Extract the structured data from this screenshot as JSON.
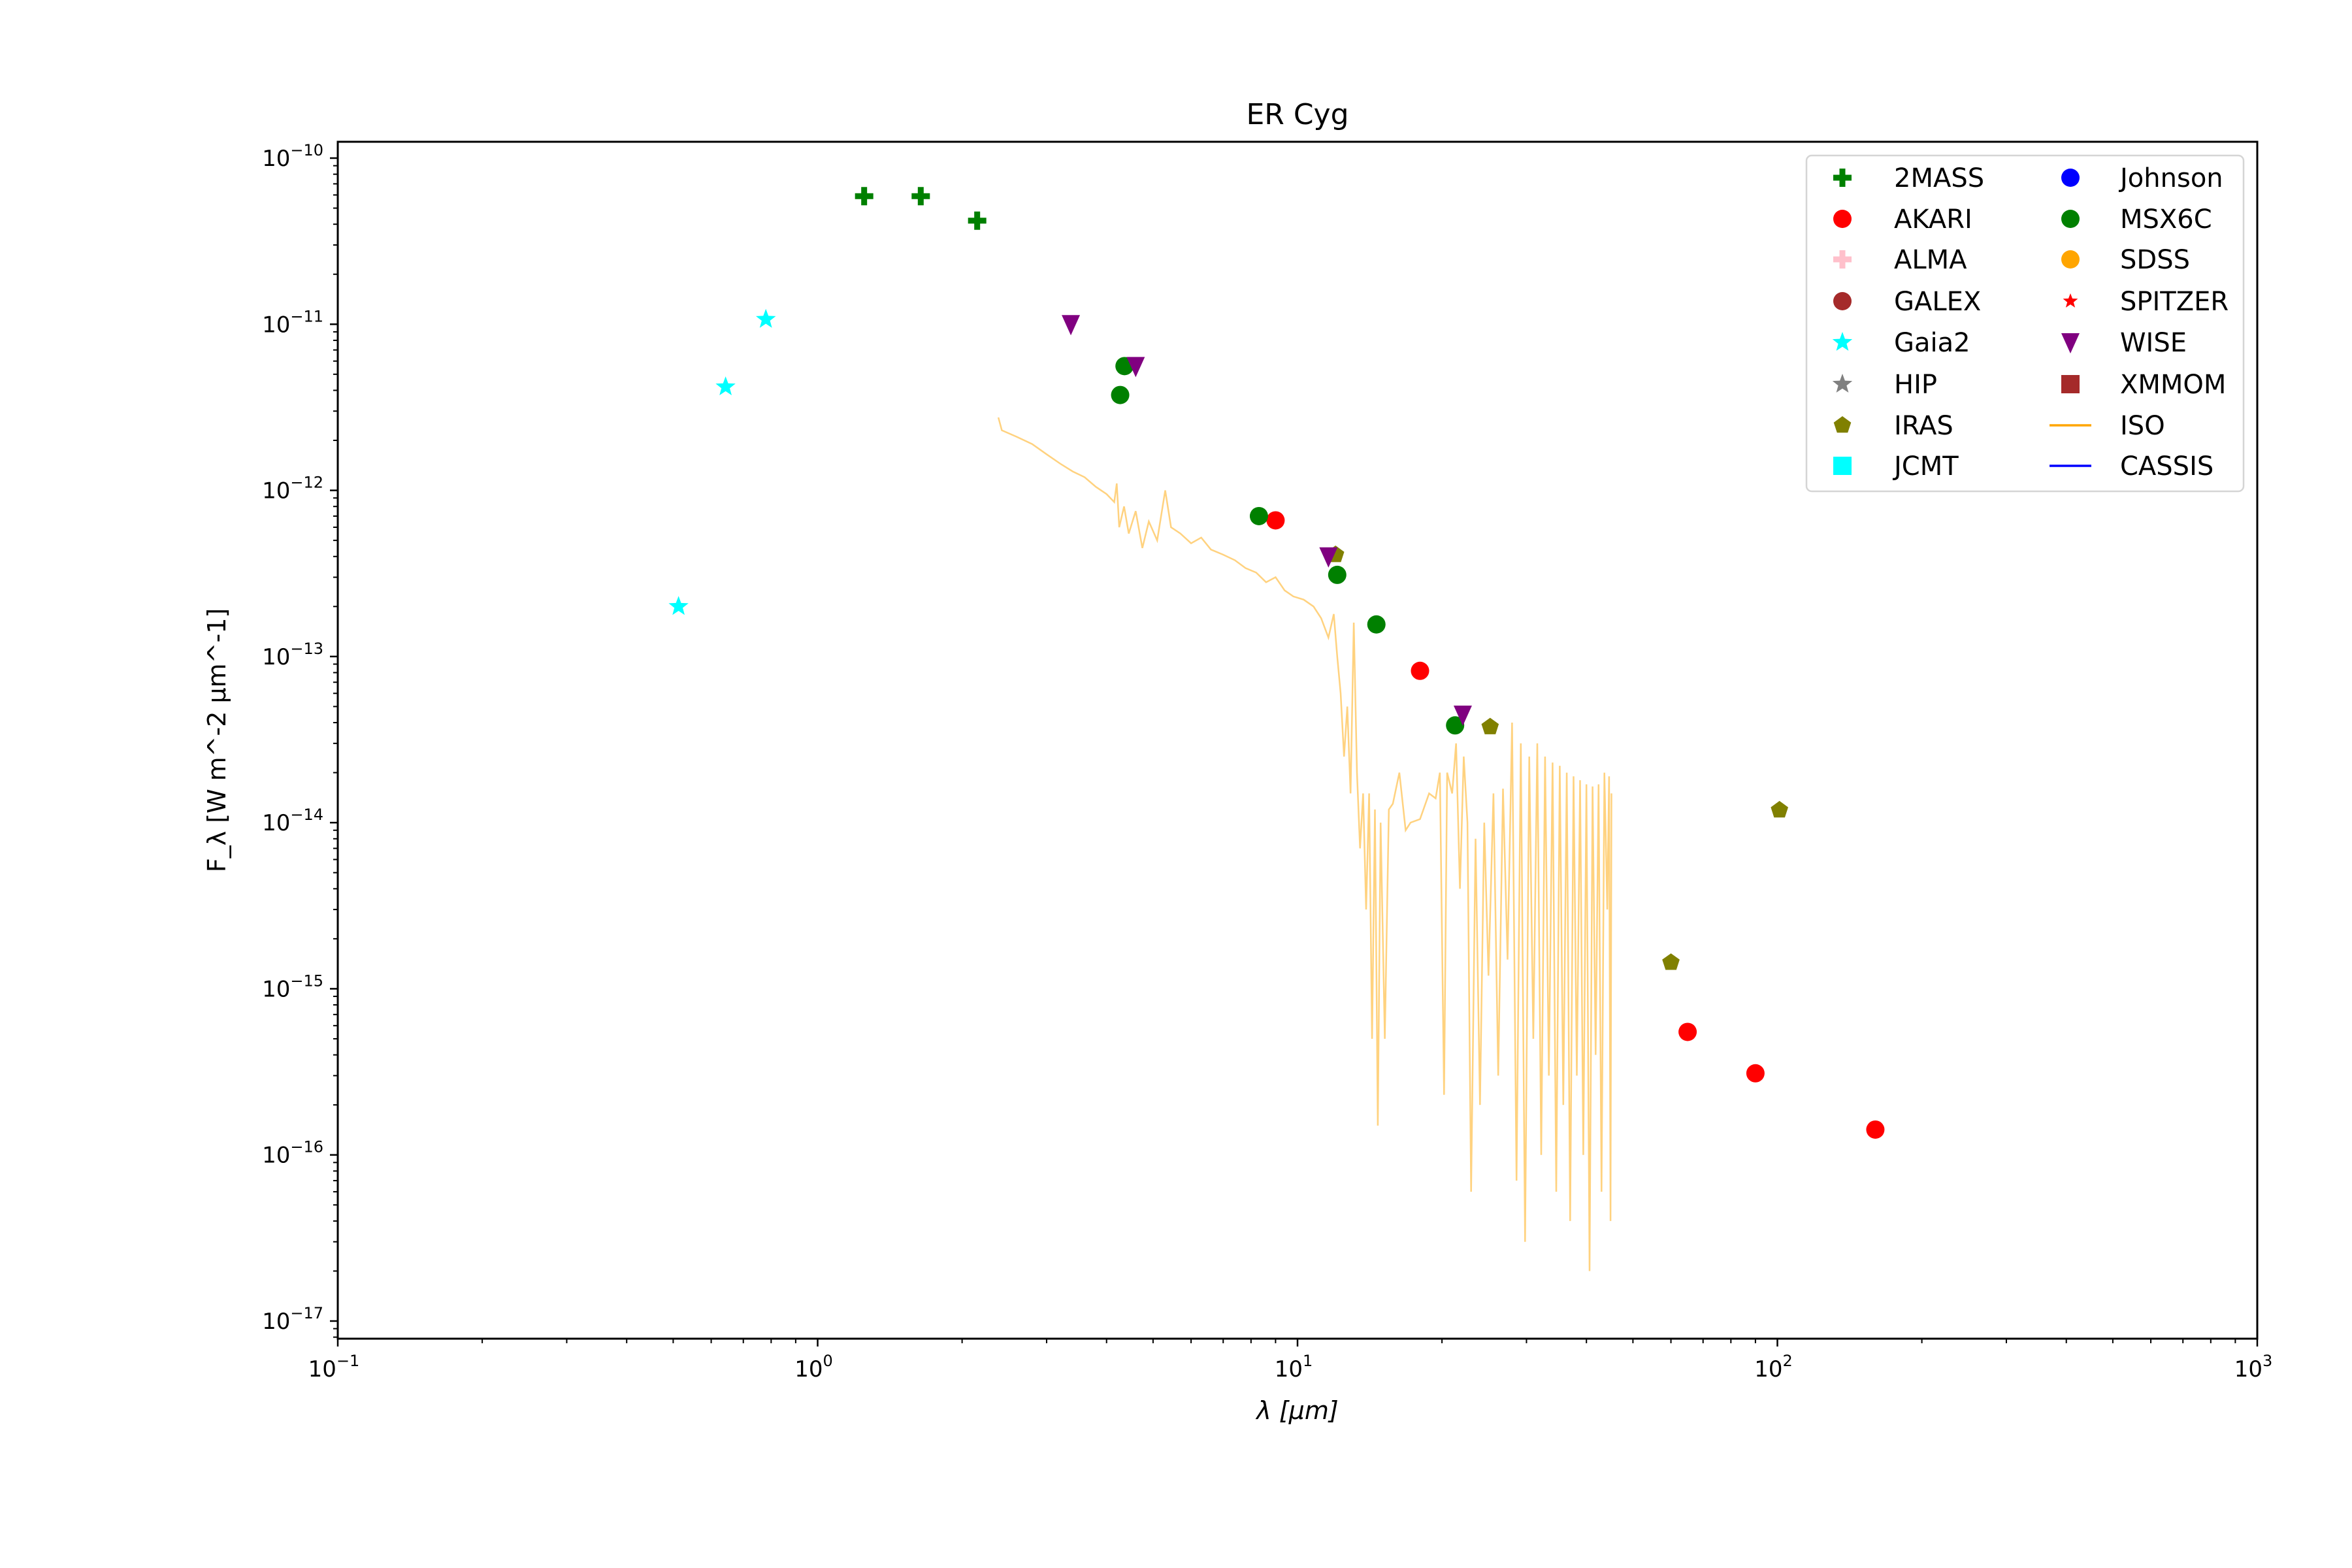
{
  "chart_data": {
    "type": "scatter",
    "title": "ER Cyg",
    "xlabel": "λ [μm]",
    "ylabel": "F_λ [W m^-2 μm^-1]",
    "xscale": "log",
    "yscale": "log",
    "xlim": [
      0.1,
      1000
    ],
    "ylim": [
      4.5e-18,
      1.6e-10
    ],
    "x_ticks": [
      {
        "v": 0.1,
        "base": "10",
        "exp": "−1"
      },
      {
        "v": 1,
        "base": "10",
        "exp": "0"
      },
      {
        "v": 10,
        "base": "10",
        "exp": "1"
      },
      {
        "v": 100,
        "base": "10",
        "exp": "2"
      },
      {
        "v": 1000,
        "base": "10",
        "exp": "3"
      }
    ],
    "y_ticks": [
      {
        "v": 1e-10,
        "base": "10",
        "exp": "−10"
      },
      {
        "v": 1e-11,
        "base": "10",
        "exp": "−11"
      },
      {
        "v": 1e-12,
        "base": "10",
        "exp": "−12"
      },
      {
        "v": 1e-13,
        "base": "10",
        "exp": "−13"
      },
      {
        "v": 1e-14,
        "base": "10",
        "exp": "−14"
      },
      {
        "v": 1e-15,
        "base": "10",
        "exp": "−15"
      },
      {
        "v": 1e-16,
        "base": "10",
        "exp": "−16"
      },
      {
        "v": 1e-17,
        "base": "10",
        "exp": "−17"
      }
    ],
    "legend_position": "top-right",
    "series": [
      {
        "name": "2MASS",
        "marker": "plus",
        "color": "#008000",
        "points": [
          [
            1.25,
            5.9e-11
          ],
          [
            1.64,
            5.9e-11
          ],
          [
            2.15,
            4.2e-11
          ]
        ]
      },
      {
        "name": "AKARI",
        "marker": "circle",
        "color": "#ff0000",
        "points": [
          [
            9.0,
            6.6e-13
          ],
          [
            18.0,
            8.2e-14
          ],
          [
            65,
            5.5e-16
          ],
          [
            90,
            3.1e-16
          ],
          [
            160,
            1.42e-16
          ]
        ]
      },
      {
        "name": "ALMA",
        "marker": "plus",
        "color": "#ffc0cb",
        "points": []
      },
      {
        "name": "GALEX",
        "marker": "circle",
        "color": "#a52a2a",
        "points": []
      },
      {
        "name": "Gaia2",
        "marker": "star",
        "color": "#00ffff",
        "points": [
          [
            0.513,
            2e-13
          ],
          [
            0.643,
            4.2e-12
          ],
          [
            0.78,
            1.07e-11
          ]
        ]
      },
      {
        "name": "HIP",
        "marker": "star",
        "color": "#808080",
        "points": []
      },
      {
        "name": "IRAS",
        "marker": "pentagon",
        "color": "#808000",
        "points": [
          [
            12.0,
            4.1e-13
          ],
          [
            25.2,
            3.77e-14
          ],
          [
            60,
            1.44e-15
          ],
          [
            101,
            1.19e-14
          ]
        ]
      },
      {
        "name": "JCMT",
        "marker": "square",
        "color": "#00ffff",
        "points": []
      },
      {
        "name": "Johnson",
        "marker": "circle",
        "color": "#0000ff",
        "points": []
      },
      {
        "name": "MSX6C",
        "marker": "circle",
        "color": "#008000",
        "points": [
          [
            4.27,
            3.75e-12
          ],
          [
            4.36,
            5.6e-12
          ],
          [
            8.31,
            7e-13
          ],
          [
            12.1,
            3.1e-13
          ],
          [
            14.6,
            1.56e-13
          ],
          [
            21.3,
            3.85e-14
          ]
        ]
      },
      {
        "name": "SDSS",
        "marker": "circle",
        "color": "#ffa500",
        "points": []
      },
      {
        "name": "SPITZER",
        "marker": "smallstar",
        "color": "#ff0000",
        "points": []
      },
      {
        "name": "WISE",
        "marker": "triangle-down",
        "color": "#800080",
        "points": [
          [
            3.37,
            1e-11
          ],
          [
            4.6,
            5.6e-12
          ],
          [
            11.6,
            4e-13
          ],
          [
            22.1,
            4.46e-14
          ]
        ]
      },
      {
        "name": "XMMOM",
        "marker": "square",
        "color": "#a52a2a",
        "points": []
      },
      {
        "name": "ISO",
        "marker": "line",
        "color": "#ffa500",
        "points": [
          [
            2.38,
            2.75e-12
          ],
          [
            2.42,
            2.3e-12
          ],
          [
            2.6,
            2.1e-12
          ],
          [
            2.8,
            1.9e-12
          ],
          [
            3.0,
            1.65e-12
          ],
          [
            3.2,
            1.45e-12
          ],
          [
            3.4,
            1.3e-12
          ],
          [
            3.6,
            1.2e-12
          ],
          [
            3.8,
            1.05e-12
          ],
          [
            4.0,
            9.5e-13
          ],
          [
            4.15,
            8.5e-13
          ],
          [
            4.2,
            1.1e-12
          ],
          [
            4.25,
            6e-13
          ],
          [
            4.35,
            8e-13
          ],
          [
            4.45,
            5.5e-13
          ],
          [
            4.6,
            7.5e-13
          ],
          [
            4.75,
            4.5e-13
          ],
          [
            4.9,
            6.5e-13
          ],
          [
            5.1,
            5e-13
          ],
          [
            5.3,
            1e-12
          ],
          [
            5.45,
            6e-13
          ],
          [
            5.7,
            5.5e-13
          ],
          [
            6.0,
            4.8e-13
          ],
          [
            6.3,
            5.2e-13
          ],
          [
            6.6,
            4.4e-13
          ],
          [
            7.0,
            4.1e-13
          ],
          [
            7.4,
            3.8e-13
          ],
          [
            7.8,
            3.4e-13
          ],
          [
            8.2,
            3.2e-13
          ],
          [
            8.6,
            2.8e-13
          ],
          [
            9.0,
            3e-13
          ],
          [
            9.4,
            2.5e-13
          ],
          [
            9.8,
            2.3e-13
          ],
          [
            10.3,
            2.2e-13
          ],
          [
            10.8,
            2e-13
          ],
          [
            11.2,
            1.7e-13
          ],
          [
            11.6,
            1.3e-13
          ],
          [
            11.9,
            1.8e-13
          ],
          [
            12.1,
            1e-13
          ],
          [
            12.3,
            6e-14
          ],
          [
            12.5,
            2.5e-14
          ],
          [
            12.7,
            5e-14
          ],
          [
            12.9,
            1.5e-14
          ],
          [
            13.1,
            1.6e-13
          ],
          [
            13.3,
            2e-14
          ],
          [
            13.5,
            7e-15
          ],
          [
            13.7,
            1.5e-14
          ],
          [
            13.9,
            3e-15
          ],
          [
            14.1,
            1.5e-14
          ],
          [
            14.3,
            5e-16
          ],
          [
            14.5,
            1.2e-14
          ],
          [
            14.7,
            1.5e-16
          ],
          [
            14.9,
            1e-14
          ],
          [
            15.2,
            5e-16
          ],
          [
            15.5,
            1.2e-14
          ],
          [
            15.8,
            1.3e-14
          ],
          [
            16.3,
            2e-14
          ],
          [
            16.8,
            9e-15
          ],
          [
            17.2,
            1e-14
          ],
          [
            18.0,
            1.05e-14
          ],
          [
            18.8,
            1.5e-14
          ],
          [
            19.4,
            1.4e-14
          ],
          [
            19.8,
            2e-14
          ],
          [
            20.2,
            2.3e-16
          ],
          [
            20.5,
            2e-14
          ],
          [
            21.0,
            1.5e-14
          ],
          [
            21.4,
            3e-14
          ],
          [
            21.8,
            4e-15
          ],
          [
            22.2,
            2.5e-14
          ],
          [
            22.6,
            1e-14
          ],
          [
            23.0,
            6e-17
          ],
          [
            23.5,
            8e-15
          ],
          [
            24.0,
            2e-16
          ],
          [
            24.5,
            1e-14
          ],
          [
            25.0,
            1.2e-15
          ],
          [
            25.6,
            1.5e-14
          ],
          [
            26.2,
            3e-16
          ],
          [
            26.8,
            1.6e-14
          ],
          [
            27.4,
            1.5e-15
          ],
          [
            28.0,
            4e-14
          ],
          [
            28.6,
            7e-17
          ],
          [
            29.2,
            3e-14
          ],
          [
            29.8,
            3e-17
          ],
          [
            30.4,
            2.5e-14
          ],
          [
            31.0,
            5e-16
          ],
          [
            31.6,
            3e-14
          ],
          [
            32.2,
            1e-16
          ],
          [
            32.8,
            2.5e-14
          ],
          [
            33.4,
            3e-16
          ],
          [
            34.0,
            2.3e-14
          ],
          [
            34.6,
            6e-17
          ],
          [
            35.2,
            2.2e-14
          ],
          [
            35.8,
            2e-16
          ],
          [
            36.4,
            2e-14
          ],
          [
            37.0,
            4e-17
          ],
          [
            37.6,
            1.9e-14
          ],
          [
            38.2,
            3e-16
          ],
          [
            38.8,
            1.8e-14
          ],
          [
            39.4,
            1e-16
          ],
          [
            40.0,
            1.7e-14
          ],
          [
            40.6,
            2e-17
          ],
          [
            41.2,
            1.65e-14
          ],
          [
            41.8,
            4e-16
          ],
          [
            42.4,
            1.7e-14
          ],
          [
            43.0,
            6e-17
          ],
          [
            43.6,
            2e-14
          ],
          [
            44.2,
            3e-15
          ],
          [
            44.6,
            1.9e-14
          ],
          [
            44.9,
            4e-17
          ],
          [
            45.1,
            1.5e-14
          ]
        ]
      },
      {
        "name": "CASSIS",
        "marker": "line",
        "color": "#0000ff",
        "points": []
      }
    ]
  }
}
